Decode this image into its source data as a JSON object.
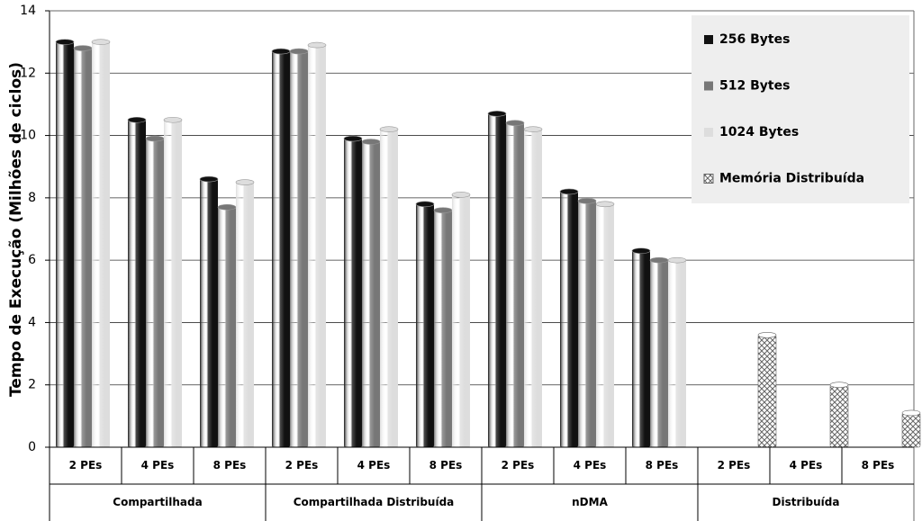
{
  "chart_data": {
    "type": "bar",
    "y_label": "Tempo de Execução (Milhões de ciclos)",
    "categories": [
      "2 PEs",
      "4 PEs",
      "8 PEs",
      "2 PEs",
      "4 PEs",
      "8 PEs",
      "2 PEs",
      "4 PEs",
      "8 PEs",
      "2 PEs",
      "4 PEs",
      "8 PEs"
    ],
    "groups": [
      "Compartilhada",
      "Compartilhada Distribuída",
      "nDMA",
      "Distribuída"
    ],
    "series": [
      {
        "name": "256 Bytes",
        "color": "#111111",
        "values": [
          13.0,
          10.5,
          8.6,
          12.7,
          9.9,
          7.8,
          10.7,
          8.2,
          6.3,
          null,
          null,
          null
        ]
      },
      {
        "name": "512 Bytes",
        "color": "#777777",
        "values": [
          12.8,
          9.9,
          7.7,
          12.7,
          9.8,
          7.6,
          10.4,
          7.9,
          6.0,
          null,
          null,
          null
        ]
      },
      {
        "name": "1024 Bytes",
        "color": "#dddddd",
        "values": [
          13.0,
          10.5,
          8.5,
          12.9,
          10.2,
          8.1,
          10.2,
          7.8,
          6.0,
          null,
          null,
          null
        ]
      },
      {
        "name": "Memória Distribuída",
        "color": "#666666",
        "pattern": "crosshatch",
        "values": [
          null,
          null,
          null,
          null,
          null,
          null,
          null,
          null,
          null,
          3.6,
          2.0,
          1.1
        ]
      }
    ],
    "ylim": [
      0,
      14
    ],
    "yticks": [
      0,
      2,
      4,
      6,
      8,
      10,
      12,
      14
    ],
    "grid": true,
    "legend": "upper right"
  }
}
